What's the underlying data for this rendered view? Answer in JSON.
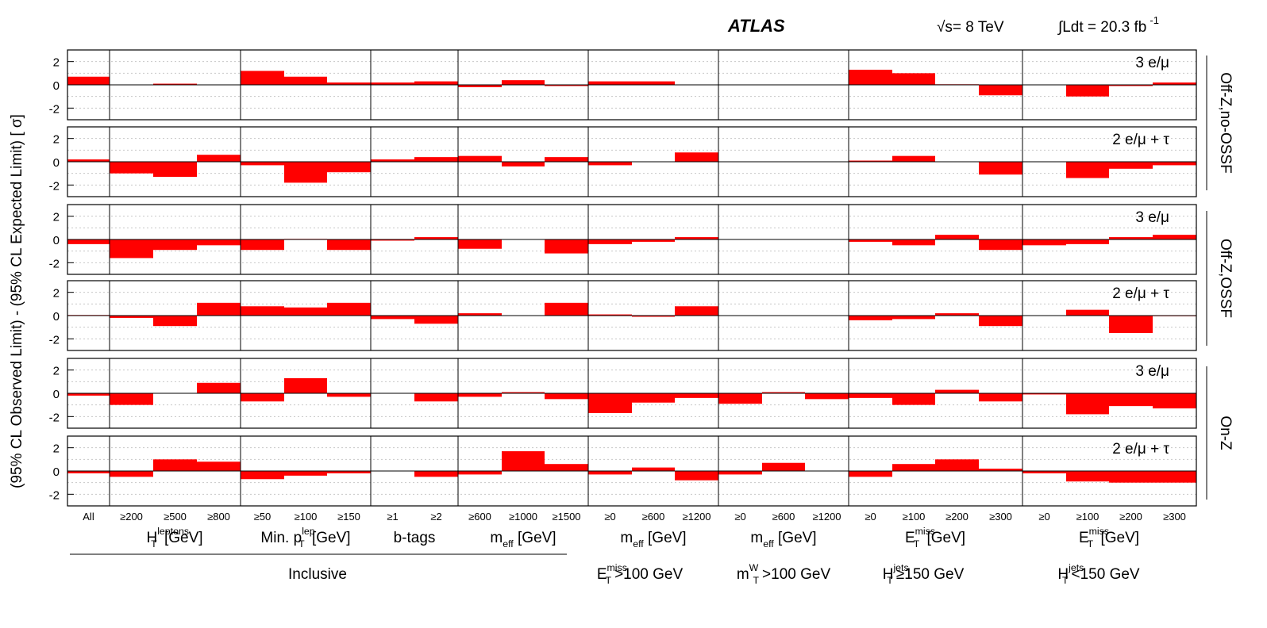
{
  "header": {
    "experiment": "ATLAS",
    "energy": "√s= 8 TeV",
    "lumi": "∫Ldt = 20.3 fb",
    "lumi_sup": "-1"
  },
  "ylabel": "(95% CL Observed Limit) - (95% CL Expected Limit) [    σ]",
  "right_labels": [
    "Off-Z,no-OSSF",
    "Off-Z,OSSF",
    "On-Z"
  ],
  "bottom": {
    "groups": [
      {
        "label": "H_T^leptons [GeV]",
        "main": "H",
        "sub": "T",
        "sup": "leptons",
        "rest": " [GeV]"
      },
      {
        "label": "Min. p_T^lep [GeV]",
        "pre": "Min. ",
        "main": "p",
        "sub": "T",
        "sup": "lep",
        "rest": " [GeV]"
      },
      {
        "label": "b-tags",
        "main": "b-tags"
      },
      {
        "label": "m_eff [GeV]",
        "main": "m",
        "sub": "eff",
        "rest": " [GeV]"
      },
      {
        "label": "m_eff [GeV]",
        "main": "m",
        "sub": "eff",
        "rest": " [GeV]"
      },
      {
        "label": "m_eff [GeV]",
        "main": "m",
        "sub": "eff",
        "rest": " [GeV]"
      },
      {
        "label": "E_T^miss [GeV]",
        "main": "E",
        "sub": "T",
        "sup": "miss",
        "rest": " [GeV]"
      },
      {
        "label": "E_T^miss [GeV]",
        "main": "E",
        "sub": "T",
        "sup": "miss",
        "rest": " [GeV]"
      }
    ],
    "inclusive": "Inclusive",
    "cuts": [
      {
        "main": "E",
        "sub": "T",
        "sup": "miss",
        "rest": ">100 GeV"
      },
      {
        "main": "m",
        "sub": "T",
        "sup": "W",
        "rest": ">100 GeV"
      },
      {
        "main": "H",
        "sub": "T",
        "sup": "jets",
        "rest": "≥150 GeV"
      },
      {
        "main": "H",
        "sub": "T",
        "sup": "jets",
        "rest": "<150 GeV"
      }
    ]
  },
  "chart_data": {
    "type": "bar",
    "unit": "σ",
    "ylim": [
      -3,
      3
    ],
    "yticks": [
      -2,
      0,
      2
    ],
    "grid": "dotted horizontal",
    "bar_color": "#ff0000",
    "categories": [
      "All",
      "≥200",
      "≥500",
      "≥800",
      "≥50",
      "≥100",
      "≥150",
      "≥1",
      "≥2",
      "≥600",
      "≥1000",
      "≥1500",
      "≥0",
      "≥600",
      "≥1200",
      "≥0",
      "≥600",
      "≥1200",
      "≥0",
      "≥100",
      "≥200",
      "≥300",
      "≥0",
      "≥100",
      "≥200",
      "≥300"
    ],
    "panels": [
      {
        "label": "3 e/μ",
        "region": "Off-Z,no-OSSF",
        "values": [
          0.7,
          0,
          0.1,
          0,
          1.2,
          0.7,
          0.2,
          0.2,
          0.3,
          -0.2,
          0.4,
          -0.1,
          0.3,
          0.3,
          0,
          0,
          0,
          0,
          1.3,
          1.0,
          0.05,
          -0.9,
          0,
          -1.0,
          -0.1,
          0.2
        ]
      },
      {
        "label": "2 e/μ + τ",
        "region": "Off-Z,no-OSSF",
        "values": [
          0.2,
          -1.0,
          -1.3,
          0.6,
          -0.3,
          -1.8,
          -0.9,
          0.2,
          0.4,
          0.5,
          -0.4,
          0.4,
          -0.3,
          0,
          0.8,
          0,
          0,
          0,
          0.1,
          0.5,
          0,
          -1.1,
          0,
          -1.4,
          -0.6,
          -0.3
        ]
      },
      {
        "label": "3 e/μ",
        "region": "Off-Z,OSSF",
        "values": [
          -0.4,
          -1.6,
          -0.9,
          -0.5,
          -0.9,
          0.05,
          -0.9,
          -0.1,
          0.2,
          -0.8,
          0,
          -1.2,
          -0.4,
          -0.2,
          0.2,
          0,
          0,
          0,
          -0.2,
          -0.5,
          0.4,
          -0.9,
          -0.5,
          -0.4,
          0.2,
          0.4
        ]
      },
      {
        "label": "2 e/μ + τ",
        "region": "Off-Z,OSSF",
        "values": [
          0.05,
          -0.2,
          -0.9,
          1.1,
          0.8,
          0.7,
          1.1,
          -0.3,
          -0.7,
          0.2,
          0,
          1.1,
          0.1,
          -0.1,
          0.8,
          0,
          0,
          0,
          -0.4,
          -0.3,
          0.2,
          -0.9,
          0,
          0.5,
          -1.5,
          -0.05
        ]
      },
      {
        "label": "3 e/μ",
        "region": "On-Z",
        "values": [
          -0.2,
          -1.0,
          0,
          0.9,
          -0.7,
          1.3,
          -0.3,
          0,
          -0.7,
          -0.3,
          0.1,
          -0.5,
          -1.7,
          -0.8,
          -0.4,
          -0.9,
          0.1,
          -0.5,
          -0.4,
          -1.0,
          0.3,
          -0.7,
          -0.1,
          -1.8,
          -1.1,
          -1.3
        ]
      },
      {
        "label": "2 e/μ + τ",
        "region": "On-Z",
        "values": [
          -0.2,
          -0.5,
          1.0,
          0.8,
          -0.7,
          -0.4,
          -0.2,
          0,
          -0.5,
          -0.3,
          1.7,
          0.6,
          -0.3,
          0.3,
          -0.8,
          -0.3,
          0.7,
          0,
          -0.5,
          0.6,
          1.0,
          0.2,
          -0.2,
          -0.9,
          -1.0,
          -1.0
        ]
      }
    ]
  }
}
